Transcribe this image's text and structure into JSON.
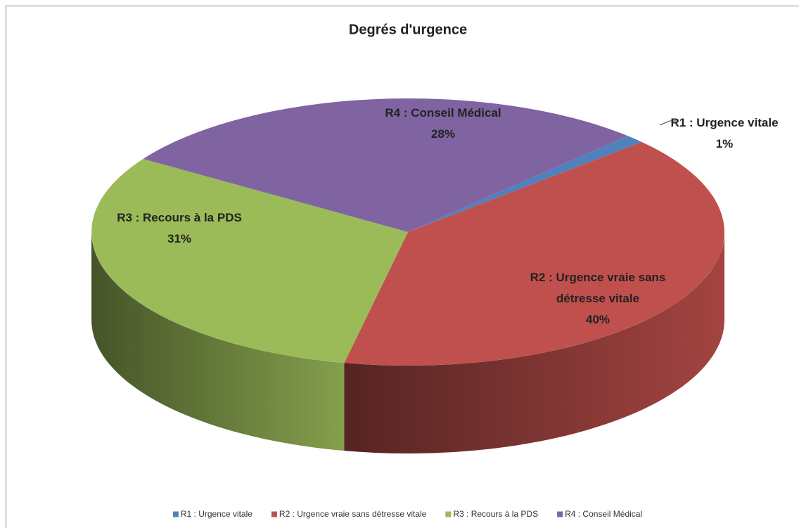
{
  "chart_data": {
    "type": "pie",
    "title": "Degrés d'urgence",
    "categories": [
      "R1 : Urgence vitale",
      "R2 : Urgence vraie sans détresse vitale",
      "R3 : Recours à la PDS",
      "R4 : Conseil Médical"
    ],
    "values": [
      1,
      40,
      31,
      28
    ],
    "value_labels": [
      "1%",
      "40%",
      "31%",
      "28%"
    ],
    "colors": [
      "#4f81bd",
      "#c0504d",
      "#9bbb59",
      "#8064a2"
    ],
    "legend": "bottom"
  }
}
